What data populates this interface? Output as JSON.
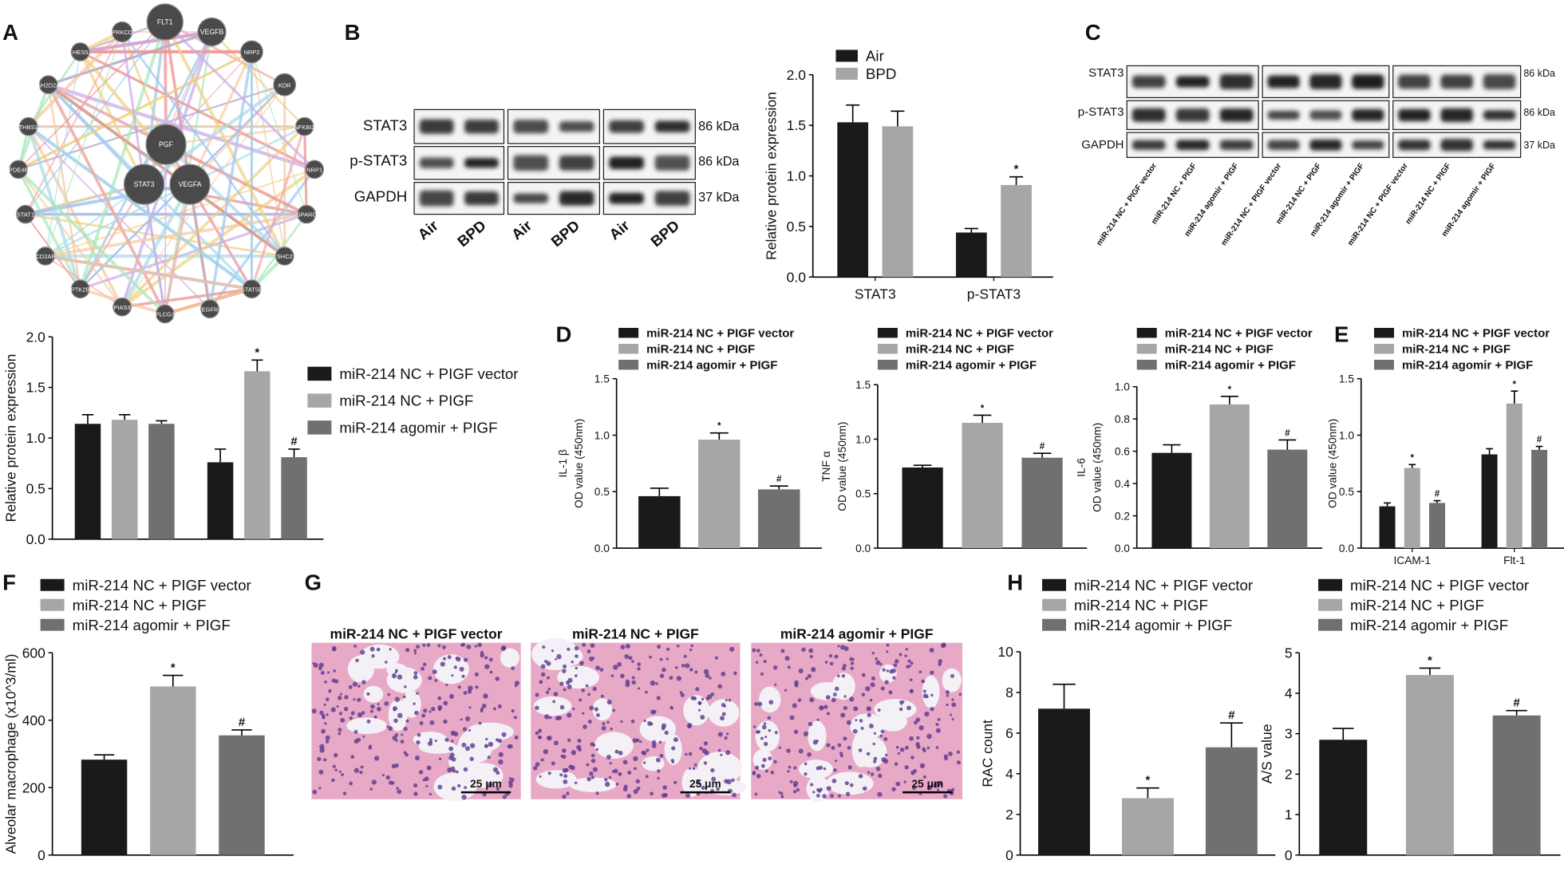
{
  "panel_letters": [
    "A",
    "B",
    "C",
    "D",
    "E",
    "F",
    "G",
    "H"
  ],
  "network": {
    "nodes": [
      "FLT1",
      "VEGFB",
      "PRKCD",
      "HES5",
      "NRP2",
      "SH2D2A",
      "KDR",
      "THBS1",
      "NFKBIZ",
      "PDE4B",
      "NRP1",
      "STAT1",
      "SPARC",
      "CD2AP",
      "SHC2",
      "PTK2B",
      "STAT5B",
      "PIAS3",
      "PLCG1",
      "EGFR",
      "PGF",
      "STAT3",
      "VEGFA"
    ]
  },
  "blot_b": {
    "rows": [
      "STAT3",
      "p-STAT3",
      "GAPDH"
    ],
    "sizes": [
      "86 kDa",
      "86 kDa",
      "37 kDa"
    ],
    "lanes": [
      "Air",
      "BPD",
      "Air",
      "BPD",
      "Air",
      "BPD"
    ]
  },
  "blot_c": {
    "rows": [
      "STAT3",
      "p-STAT3",
      "GAPDH"
    ],
    "sizes": [
      "86 kDa",
      "86 kDa",
      "37 kDa"
    ],
    "lanes": [
      "miR-214 NC + PIGF vector",
      "miR-214 NC + PIGF",
      "miR-214 agomir + PIGF",
      "miR-214 NC + PIGF vector",
      "miR-214 NC + PIGF",
      "miR-214 agomir + PIGF",
      "miR-214 NC + PIGF vector",
      "miR-214 NC + PIGF",
      "miR-214 agomir + PIGF"
    ]
  },
  "histology": {
    "titles": [
      "miR-214 NC + PIGF vector",
      "miR-214 NC + PIGF",
      "miR-214 agomir + PIGF"
    ],
    "scale_bar": "25 μm"
  },
  "chart_data": [
    {
      "type": "bar",
      "ylabel": [
        "Relative protein expression"
      ],
      "categories": [
        "STAT3",
        "p-STAT3"
      ],
      "series": [
        {
          "name": "Air",
          "color": "#1a1a1a",
          "values": [
            1.53,
            0.44
          ],
          "errors": [
            0.17,
            0.04
          ],
          "sig": [
            null,
            null
          ]
        },
        {
          "name": "BPD",
          "color": "#a6a6a8",
          "values": [
            1.49,
            0.91
          ],
          "errors": [
            0.15,
            0.08
          ],
          "sig": [
            null,
            "*"
          ]
        }
      ],
      "ylim": [
        0,
        2
      ],
      "yticks": [
        {
          "value": 0,
          "label": "0.0"
        },
        {
          "value": 0.5,
          "label": "0.5"
        },
        {
          "value": 1,
          "label": "1.0"
        },
        {
          "value": 1.5,
          "label": "1.5"
        },
        {
          "value": 2,
          "label": "2.0"
        }
      ],
      "legend": "upper left"
    },
    {
      "type": "bar",
      "ylabel": [
        "Relative protein expression"
      ],
      "categories": [
        null,
        null
      ],
      "series": [
        {
          "name": "miR-214 NC + PIGF vector",
          "color": "#1a1a1a",
          "values": [
            1.14,
            0.76
          ],
          "errors": [
            0.09,
            0.13
          ],
          "sig": [
            null,
            null
          ]
        },
        {
          "name": "miR-214 NC + PIGF",
          "color": "#a6a6a8",
          "values": [
            1.18,
            1.66
          ],
          "errors": [
            0.05,
            0.11
          ],
          "sig": [
            null,
            "*"
          ]
        },
        {
          "name": "miR-214 agomir + PIGF",
          "color": "#707070",
          "values": [
            1.14,
            0.81
          ],
          "errors": [
            0.03,
            0.08
          ],
          "sig": [
            null,
            "#"
          ]
        }
      ],
      "ylim": [
        0,
        2
      ],
      "yticks": [
        {
          "value": 0,
          "label": "0.0"
        },
        {
          "value": 0.5,
          "label": "0.5"
        },
        {
          "value": 1,
          "label": "1.0"
        },
        {
          "value": 1.5,
          "label": "1.5"
        },
        {
          "value": 2,
          "label": "2.0"
        }
      ],
      "legend": "right"
    },
    {
      "type": "bar",
      "ylabel": [
        "IL-1 β",
        "OD value (450nm)"
      ],
      "series": [
        {
          "name": "miR-214 NC + PIGF vector",
          "color": "#1a1a1a",
          "values": [
            0.46
          ],
          "errors": [
            0.07
          ],
          "sig": [
            null
          ]
        },
        {
          "name": "miR-214 NC + PIGF",
          "color": "#a6a6a8",
          "values": [
            0.96
          ],
          "errors": [
            0.06
          ],
          "sig": [
            "*"
          ]
        },
        {
          "name": "miR-214 agomir + PIGF",
          "color": "#707070",
          "values": [
            0.52
          ],
          "errors": [
            0.03
          ],
          "sig": [
            "#"
          ]
        }
      ],
      "ylim": [
        0,
        1.5
      ],
      "yticks": [
        {
          "value": 0,
          "label": "0.0"
        },
        {
          "value": 0.5,
          "label": "0.5"
        },
        {
          "value": 1,
          "label": "1.0"
        },
        {
          "value": 1.5,
          "label": "1.5"
        }
      ],
      "legend": "upper left"
    },
    {
      "type": "bar",
      "ylabel": [
        "TNF α",
        "OD value (450nm)"
      ],
      "series": [
        {
          "name": "miR-214 NC + PIGF vector",
          "color": "#1a1a1a",
          "values": [
            0.74
          ],
          "errors": [
            0.02
          ],
          "sig": [
            null
          ]
        },
        {
          "name": "miR-214 NC + PIGF",
          "color": "#a6a6a8",
          "values": [
            1.15
          ],
          "errors": [
            0.07
          ],
          "sig": [
            "*"
          ]
        },
        {
          "name": "miR-214 agomir + PIGF",
          "color": "#707070",
          "values": [
            0.83
          ],
          "errors": [
            0.04
          ],
          "sig": [
            "#"
          ]
        }
      ],
      "ylim": [
        0,
        1.5
      ],
      "yticks": [
        {
          "value": 0,
          "label": "0.0"
        },
        {
          "value": 0.5,
          "label": "0.5"
        },
        {
          "value": 1,
          "label": "1.0"
        },
        {
          "value": 1.5,
          "label": "1.5"
        }
      ],
      "legend": "upper left"
    },
    {
      "type": "bar",
      "ylabel": [
        "IL-6",
        "OD value (450nm)"
      ],
      "series": [
        {
          "name": "miR-214 NC + PIGF vector",
          "color": "#1a1a1a",
          "values": [
            0.59
          ],
          "errors": [
            0.05
          ],
          "sig": [
            null
          ]
        },
        {
          "name": "miR-214 NC + PIGF",
          "color": "#a6a6a8",
          "values": [
            0.89
          ],
          "errors": [
            0.05
          ],
          "sig": [
            "*"
          ]
        },
        {
          "name": "miR-214 agomir + PIGF",
          "color": "#707070",
          "values": [
            0.61
          ],
          "errors": [
            0.06
          ],
          "sig": [
            "#"
          ]
        }
      ],
      "ylim": [
        0,
        1
      ],
      "yticks": [
        {
          "value": 0,
          "label": "0.0"
        },
        {
          "value": 0.2,
          "label": "0.2"
        },
        {
          "value": 0.4,
          "label": "0.4"
        },
        {
          "value": 0.6,
          "label": "0.6"
        },
        {
          "value": 0.8,
          "label": "0.8"
        },
        {
          "value": 1,
          "label": "1.0"
        }
      ],
      "legend": "upper left"
    },
    {
      "type": "bar",
      "ylabel": [
        "OD value (450nm)"
      ],
      "categories": [
        "ICAM-1",
        "Flt-1"
      ],
      "series": [
        {
          "name": "miR-214 NC + PIGF vector",
          "color": "#1a1a1a",
          "values": [
            0.37,
            0.83
          ],
          "errors": [
            0.03,
            0.05
          ],
          "sig": [
            null,
            null
          ]
        },
        {
          "name": "miR-214 NC + PIGF",
          "color": "#a6a6a8",
          "values": [
            0.71,
            1.28
          ],
          "errors": [
            0.03,
            0.11
          ],
          "sig": [
            "*",
            "*"
          ]
        },
        {
          "name": "miR-214 agomir + PIGF",
          "color": "#707070",
          "values": [
            0.4,
            0.87
          ],
          "errors": [
            0.02,
            0.03
          ],
          "sig": [
            "#",
            "#"
          ]
        }
      ],
      "ylim": [
        0,
        1.5
      ],
      "yticks": [
        {
          "value": 0,
          "label": "0.0"
        },
        {
          "value": 0.5,
          "label": "0.5"
        },
        {
          "value": 1,
          "label": "1.0"
        },
        {
          "value": 1.5,
          "label": "1.5"
        }
      ],
      "legend": "upper left"
    },
    {
      "type": "bar",
      "ylabel": [
        "Alveolar macrophage (x10^3/ml)"
      ],
      "series": [
        {
          "name": "miR-214 NC + PIGF vector",
          "color": "#1a1a1a",
          "values": [
            283
          ],
          "errors": [
            14
          ],
          "sig": [
            null
          ]
        },
        {
          "name": "miR-214 NC + PIGF",
          "color": "#a6a6a8",
          "values": [
            500
          ],
          "errors": [
            33
          ],
          "sig": [
            "*"
          ]
        },
        {
          "name": "miR-214 agomir + PIGF",
          "color": "#707070",
          "values": [
            355
          ],
          "errors": [
            16
          ],
          "sig": [
            "#"
          ]
        }
      ],
      "ylim": [
        0,
        600
      ],
      "yticks": [
        0,
        200,
        400,
        600
      ],
      "legend": "upper left"
    },
    {
      "type": "bar",
      "ylabel": [
        "RAC count"
      ],
      "series": [
        {
          "name": "miR-214 NC + PIGF vector",
          "color": "#1a1a1a",
          "values": [
            7.2
          ],
          "errors": [
            1.2
          ],
          "sig": [
            null
          ]
        },
        {
          "name": "miR-214 NC + PIGF",
          "color": "#a6a6a8",
          "values": [
            2.8
          ],
          "errors": [
            0.5
          ],
          "sig": [
            "*"
          ]
        },
        {
          "name": "miR-214 agomir + PIGF",
          "color": "#707070",
          "values": [
            5.3
          ],
          "errors": [
            1.2
          ],
          "sig": [
            "#"
          ]
        }
      ],
      "ylim": [
        0,
        10
      ],
      "yticks": [
        0,
        2,
        4,
        6,
        8,
        10
      ],
      "legend": "upper left"
    },
    {
      "type": "bar",
      "ylabel": [
        "A/S value"
      ],
      "series": [
        {
          "name": "miR-214 NC + PIGF vector",
          "color": "#1a1a1a",
          "values": [
            2.85
          ],
          "errors": [
            0.28
          ],
          "sig": [
            null
          ]
        },
        {
          "name": "miR-214 NC + PIGF",
          "color": "#a6a6a8",
          "values": [
            4.45
          ],
          "errors": [
            0.17
          ],
          "sig": [
            "*"
          ]
        },
        {
          "name": "miR-214 agomir + PIGF",
          "color": "#707070",
          "values": [
            3.45
          ],
          "errors": [
            0.12
          ],
          "sig": [
            "#"
          ]
        }
      ],
      "ylim": [
        0,
        5
      ],
      "yticks": [
        0,
        1,
        2,
        3,
        4,
        5
      ],
      "legend": "upper left"
    }
  ]
}
